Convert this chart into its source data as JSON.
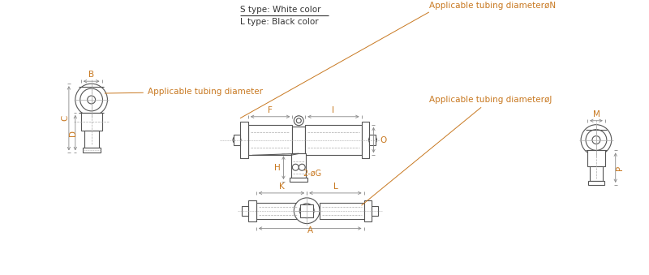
{
  "bg_color": "#ffffff",
  "line_color": "#555555",
  "dim_color": "#888888",
  "orange": "#c87820",
  "dark": "#333333",
  "s_type_text": "S type: White color",
  "l_type_text": "L type: Black color",
  "applicable_tubing_diameter": "Applicable tubing diameter",
  "applicable_tubing_diameterN": "Applicable tubing diameterøN",
  "applicable_tubing_diameterJ": "Applicable tubing diameterøJ"
}
